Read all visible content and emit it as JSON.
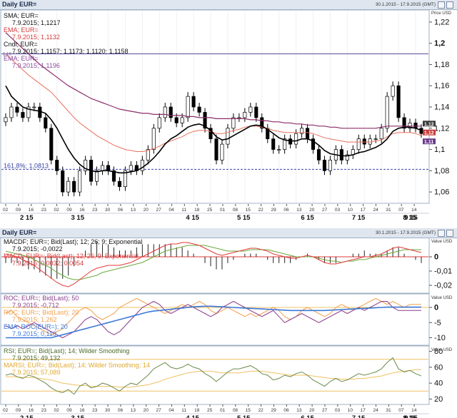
{
  "window1": {
    "title": "Daily EUR=",
    "range": "30.1.2015 - 17.9.2015 (GMT)"
  },
  "window2": {
    "title": "Daily EUR=",
    "range": "30.1.2015 - 17.9.2015 (GMT)"
  },
  "panel1": {
    "unit_label": "Price USD",
    "legend": {
      "sma_name": "SMA; EUR=",
      "sma_value": "7.9.2015; 1,1217",
      "ema_name": "EMA; EUR=",
      "ema_value": "7.9.2015; 1,1132",
      "cndl_name": "Cndl; EUR=",
      "cndl_value": "7.9.2015; 1,1157; 1,1173; 1,1120; 1,1158",
      "ema2_name": "EMA; EUR=",
      "ema2_value": "7.9.2015; 1,1196"
    },
    "hline_label": "1,19",
    "fib_label": "161,8%; 1,0813",
    "yticks": [
      "1,22",
      "1,2",
      "1,18",
      "1,16",
      "1,14",
      "1,12",
      "1,1",
      "1,08",
      "1,06"
    ],
    "price_flags": [
      "1,12",
      "1,12",
      "1,11"
    ]
  },
  "panel2": {
    "unit_label": "Value USD",
    "legend": {
      "macdf_name": "MACDF; EUR=; Bid(Last); 12; 26; 9; Exponential",
      "macdf_value": "7.9.2015; -0,0022",
      "macd_name": "MACD; EUR=; Bid(Last); 12; 26; 9; Exponential",
      "macd_value": "7.9.2015; 0,0032; 0,0054"
    },
    "yticks": [
      "0",
      "-0,01",
      "-0,02"
    ]
  },
  "panel3": {
    "unit_label": "Value USD",
    "legend": {
      "roc1_name": "ROC; EUR=; Bid(Last); 50",
      "roc1_value": "7.9.2015; -0,712",
      "roc2_name": "ROC; EUR=; Bid(Last); 20",
      "roc2_value": "7.9.2015; 1,262",
      "ema_name": "EMA; ROC(EUR=); 20",
      "ema_value": "7.9.2015; 0,110"
    },
    "yticks": [
      "0",
      "-5",
      "-10"
    ]
  },
  "panel4": {
    "unit_label": "Value USD",
    "legend": {
      "rsi_name": "RSI; EUR=; Bid(Last); 14; Wilder Smoothing",
      "rsi_value": "7.9.2015; 49,132",
      "marsi_name": "MARSI; EUR=; Bid(Last); 14; Wilder Smoothing; 14",
      "marsi_value": "7.9.2015; 57,089"
    },
    "yticks": [
      "80",
      "60",
      "40",
      "20"
    ]
  },
  "xaxis": {
    "day_ticks": [
      "02",
      "09",
      "16",
      "23",
      "02",
      "09",
      "16",
      "23",
      "30",
      "06",
      "13",
      "20",
      "27",
      "04",
      "11",
      "18",
      "25",
      "01",
      "08",
      "15",
      "22",
      "29",
      "06",
      "13",
      "20",
      "27",
      "03",
      "10",
      "17",
      "24",
      "31",
      "07",
      "14"
    ],
    "month_labels": [
      "2 15",
      "3 15",
      "4 15",
      "5 15",
      "6 15",
      "7 15",
      "8 15",
      "9 15"
    ]
  },
  "colors": {
    "sma": "#8b2d6a",
    "ema": "#e8705e",
    "ema2": "#000000",
    "up_candle": "#ffffff",
    "down_candle": "#000000",
    "fib": "#3a46a6",
    "hline": "#5a4a9c",
    "macd": "#e23a3a",
    "macdf": "#6aaa3c",
    "roc50": "#8a3c8a",
    "roc20": "#f0a050",
    "roc_ema": "#3c78d8",
    "rsi": "#6a8a4a",
    "marsi": "#f0c060"
  },
  "chart_data": [
    {
      "type": "candlestick",
      "title": "Daily EUR=",
      "ylabel": "Price USD",
      "ylim": [
        1.05,
        1.23
      ],
      "hlines": [
        {
          "label": "1,19",
          "value": 1.19
        },
        {
          "label": "161,8%; 1,0813",
          "value": 1.0813
        }
      ],
      "series": [
        {
          "name": "Cndl; EUR=",
          "close": [
            1.13,
            1.14,
            1.135,
            1.13,
            1.14,
            1.14,
            1.13,
            1.12,
            1.09,
            1.08,
            1.06,
            1.07,
            1.06,
            1.08,
            1.09,
            1.07,
            1.08,
            1.085,
            1.08,
            1.07,
            1.065,
            1.08,
            1.085,
            1.08,
            1.09,
            1.1,
            1.12,
            1.13,
            1.14,
            1.13,
            1.125,
            1.13,
            1.15,
            1.14,
            1.135,
            1.12,
            1.11,
            1.09,
            1.105,
            1.12,
            1.13,
            1.13,
            1.135,
            1.14,
            1.13,
            1.12,
            1.11,
            1.1,
            1.1,
            1.11,
            1.105,
            1.115,
            1.12,
            1.11,
            1.1,
            1.09,
            1.08,
            1.09,
            1.1,
            1.09,
            1.095,
            1.1,
            1.11,
            1.105,
            1.11,
            1.11,
            1.12,
            1.15,
            1.16,
            1.13,
            1.12,
            1.125,
            1.12,
            1.115
          ]
        },
        {
          "name": "SMA; EUR=",
          "values": [
            1.21,
            1.205,
            1.2,
            1.195,
            1.19,
            1.185,
            1.18,
            1.176,
            1.172,
            1.168,
            1.164,
            1.16,
            1.157,
            1.154,
            1.151,
            1.148,
            1.146,
            1.144,
            1.142,
            1.14,
            1.138,
            1.137,
            1.136,
            1.135,
            1.134,
            1.134,
            1.133,
            1.133,
            1.133,
            1.132,
            1.132,
            1.132,
            1.131,
            1.131,
            1.13,
            1.13,
            1.13,
            1.129,
            1.129,
            1.129,
            1.129,
            1.129,
            1.129,
            1.128,
            1.128,
            1.127,
            1.127,
            1.126,
            1.126,
            1.125,
            1.125,
            1.124,
            1.124,
            1.123,
            1.123,
            1.122,
            1.122,
            1.121,
            1.121,
            1.12,
            1.12,
            1.12,
            1.12,
            1.12,
            1.12,
            1.12,
            1.121,
            1.122,
            1.122,
            1.122,
            1.122,
            1.122,
            1.122,
            1.122
          ]
        },
        {
          "name": "EMA; EUR=",
          "values": [
            1.19,
            1.185,
            1.18,
            1.175,
            1.17,
            1.166,
            1.162,
            1.158,
            1.154,
            1.148,
            1.142,
            1.136,
            1.13,
            1.125,
            1.121,
            1.117,
            1.113,
            1.11,
            1.107,
            1.104,
            1.102,
            1.1,
            1.099,
            1.098,
            1.098,
            1.099,
            1.101,
            1.103,
            1.106,
            1.108,
            1.11,
            1.112,
            1.115,
            1.117,
            1.118,
            1.118,
            1.117,
            1.115,
            1.115,
            1.116,
            1.118,
            1.119,
            1.121,
            1.122,
            1.122,
            1.121,
            1.12,
            1.118,
            1.117,
            1.116,
            1.116,
            1.116,
            1.116,
            1.116,
            1.115,
            1.113,
            1.111,
            1.11,
            1.109,
            1.108,
            1.107,
            1.107,
            1.107,
            1.107,
            1.107,
            1.108,
            1.109,
            1.112,
            1.115,
            1.116,
            1.116,
            1.116,
            1.115,
            1.113
          ]
        },
        {
          "name": "EMA; EUR=",
          "values": [
            1.16,
            1.15,
            1.145,
            1.14,
            1.138,
            1.137,
            1.136,
            1.134,
            1.128,
            1.12,
            1.11,
            1.1,
            1.092,
            1.086,
            1.082,
            1.08,
            1.079,
            1.08,
            1.08,
            1.079,
            1.078,
            1.078,
            1.079,
            1.08,
            1.083,
            1.087,
            1.092,
            1.098,
            1.105,
            1.11,
            1.113,
            1.117,
            1.121,
            1.123,
            1.124,
            1.122,
            1.118,
            1.112,
            1.109,
            1.11,
            1.113,
            1.116,
            1.119,
            1.122,
            1.123,
            1.122,
            1.119,
            1.115,
            1.111,
            1.109,
            1.108,
            1.108,
            1.11,
            1.11,
            1.108,
            1.104,
            1.099,
            1.096,
            1.095,
            1.094,
            1.094,
            1.095,
            1.097,
            1.098,
            1.1,
            1.102,
            1.105,
            1.11,
            1.117,
            1.12,
            1.121,
            1.121,
            1.12,
            1.118
          ]
        }
      ]
    },
    {
      "type": "line",
      "ylabel": "Value USD",
      "ylim": [
        -0.025,
        0.012
      ],
      "series": [
        {
          "name": "MACD; EUR=; Bid(Last); 12; 26; 9; Exponential",
          "values": [
            0.002,
            0.001,
            0.0,
            -0.002,
            -0.004,
            -0.006,
            -0.009,
            -0.012,
            -0.015,
            -0.018,
            -0.02,
            -0.021,
            -0.019,
            -0.016,
            -0.013,
            -0.01,
            -0.008,
            -0.007,
            -0.006,
            -0.006,
            -0.006,
            -0.005,
            -0.004,
            -0.002,
            0.0,
            0.002,
            0.004,
            0.006,
            0.008,
            0.009,
            0.009,
            0.01,
            0.01,
            0.009,
            0.008,
            0.006,
            0.004,
            0.002,
            0.001,
            0.002,
            0.003,
            0.004,
            0.005,
            0.006,
            0.006,
            0.005,
            0.004,
            0.002,
            0.001,
            0.0,
            -0.001,
            -0.001,
            0.0,
            0.001,
            0.0,
            -0.002,
            -0.004,
            -0.005,
            -0.005,
            -0.004,
            -0.003,
            -0.002,
            -0.001,
            0.0,
            0.0,
            0.001,
            0.002,
            0.004,
            0.006,
            0.007,
            0.006,
            0.005,
            0.004,
            0.003
          ]
        },
        {
          "name": "MACDF; EUR=; Bid(Last); 12; 26; 9; Exponential",
          "values": [
            0.004,
            0.003,
            0.002,
            0.001,
            0.0,
            -0.002,
            -0.004,
            -0.006,
            -0.008,
            -0.011,
            -0.013,
            -0.015,
            -0.016,
            -0.016,
            -0.015,
            -0.014,
            -0.013,
            -0.011,
            -0.01,
            -0.009,
            -0.008,
            -0.007,
            -0.006,
            -0.005,
            -0.004,
            -0.002,
            0.0,
            0.002,
            0.004,
            0.005,
            0.006,
            0.007,
            0.008,
            0.008,
            0.008,
            0.008,
            0.007,
            0.006,
            0.005,
            0.004,
            0.004,
            0.004,
            0.004,
            0.005,
            0.005,
            0.005,
            0.005,
            0.004,
            0.003,
            0.002,
            0.001,
            0.0,
            0.0,
            0.0,
            0.0,
            -0.001,
            -0.002,
            -0.003,
            -0.003,
            -0.004,
            -0.003,
            -0.003,
            -0.002,
            -0.002,
            -0.001,
            0.0,
            0.001,
            0.002,
            0.003,
            0.004,
            0.005,
            0.005,
            0.005,
            0.005
          ]
        }
      ]
    },
    {
      "type": "line",
      "ylabel": "Value USD",
      "ylim": [
        -12,
        4
      ],
      "series": [
        {
          "name": "ROC; EUR=; Bid(Last); 50",
          "values": [
            -6,
            -7,
            -6,
            -7,
            -6,
            -5,
            -6,
            -7,
            -8,
            -9,
            -10,
            -9,
            -8,
            -6,
            -4,
            -3,
            -4,
            -6,
            -8,
            -9,
            -8,
            -6,
            -4,
            -2,
            0,
            1,
            2,
            1,
            -1,
            -2,
            -1,
            0,
            1,
            0,
            -1,
            -2,
            -3,
            -2,
            0,
            1,
            2,
            1,
            0,
            -1,
            -2,
            -3,
            -2,
            -1,
            -3,
            -5,
            -4,
            -3,
            -2,
            -3,
            -4,
            -5,
            -4,
            -3,
            -2,
            -1,
            -2,
            -1,
            0,
            -1,
            0,
            1,
            2,
            2,
            0,
            -1,
            -1,
            -1,
            -1,
            -1
          ]
        },
        {
          "name": "ROC; EUR=; Bid(Last); 20",
          "values": [
            -2,
            -1,
            -3,
            -4,
            -5,
            -6,
            -7,
            -8,
            -9,
            -8,
            -7,
            -5,
            -3,
            -1,
            0,
            -1,
            -3,
            -4,
            -3,
            -2,
            0,
            1,
            2,
            3,
            2,
            1,
            0,
            -1,
            -2,
            -1,
            0,
            1,
            0,
            1,
            2,
            1,
            -1,
            -2,
            -1,
            0,
            -1,
            -2,
            -3,
            -2,
            -3,
            -2,
            -1,
            0,
            -1,
            -3,
            -4,
            -3,
            -1,
            0,
            -1,
            -2,
            -3,
            -2,
            0,
            1,
            0,
            -1,
            0,
            1,
            2,
            3,
            2,
            1,
            2,
            1,
            0,
            1,
            1,
            1
          ]
        },
        {
          "name": "EMA; ROC(EUR=); 20",
          "values": [
            -10,
            -10,
            -10,
            -10,
            -10,
            -10,
            -10,
            -10,
            -10,
            -9.5,
            -9,
            -8.5,
            -8,
            -7.5,
            -7,
            -6.5,
            -6,
            -5.5,
            -5,
            -4.5,
            -4,
            -3.5,
            -3,
            -2.5,
            -2,
            -1.5,
            -1.2,
            -1,
            -0.8,
            -0.6,
            -0.4,
            -0.2,
            0,
            0.2,
            0.3,
            0.4,
            0.4,
            0.3,
            0.2,
            0.1,
            0,
            -0.1,
            -0.2,
            -0.3,
            -0.4,
            -0.5,
            -0.6,
            -0.7,
            -0.8,
            -0.9,
            -1,
            -1,
            -1,
            -1,
            -1,
            -1,
            -1,
            -0.9,
            -0.8,
            -0.7,
            -0.6,
            -0.5,
            -0.4,
            -0.3,
            -0.2,
            -0.1,
            0,
            0.1,
            0.1,
            0.1,
            0.1,
            0.1,
            0.1,
            0.1
          ]
        }
      ]
    },
    {
      "type": "line",
      "ylabel": "Value USD",
      "ylim": [
        15,
        85
      ],
      "hlines": [
        30,
        70
      ],
      "series": [
        {
          "name": "RSI; EUR=; Bid(Last); 14; Wilder Smoothing",
          "values": [
            50,
            52,
            48,
            46,
            50,
            48,
            44,
            40,
            34,
            30,
            28,
            32,
            26,
            36,
            40,
            34,
            36,
            40,
            38,
            34,
            30,
            36,
            40,
            38,
            44,
            50,
            58,
            62,
            66,
            60,
            58,
            60,
            64,
            60,
            58,
            52,
            48,
            42,
            48,
            54,
            58,
            58,
            60,
            62,
            58,
            52,
            50,
            44,
            46,
            50,
            48,
            52,
            54,
            50,
            44,
            40,
            36,
            42,
            46,
            42,
            44,
            48,
            52,
            50,
            52,
            54,
            58,
            66,
            72,
            58,
            54,
            56,
            52,
            49
          ]
        },
        {
          "name": "MARSI; EUR=; Bid(Last); 14; Wilder Smoothing; 14",
          "values": [
            48,
            48,
            48,
            47,
            47,
            47,
            46,
            45,
            44,
            42,
            40,
            39,
            38,
            37,
            37,
            36,
            36,
            36,
            36,
            36,
            35,
            35,
            35,
            36,
            37,
            38,
            40,
            42,
            45,
            47,
            49,
            51,
            53,
            54,
            55,
            55,
            55,
            54,
            53,
            53,
            53,
            53,
            54,
            55,
            55,
            55,
            54,
            53,
            52,
            51,
            50,
            50,
            50,
            50,
            49,
            48,
            47,
            46,
            46,
            45,
            45,
            45,
            46,
            46,
            47,
            48,
            49,
            51,
            53,
            54,
            55,
            56,
            57,
            57
          ]
        }
      ]
    }
  ]
}
